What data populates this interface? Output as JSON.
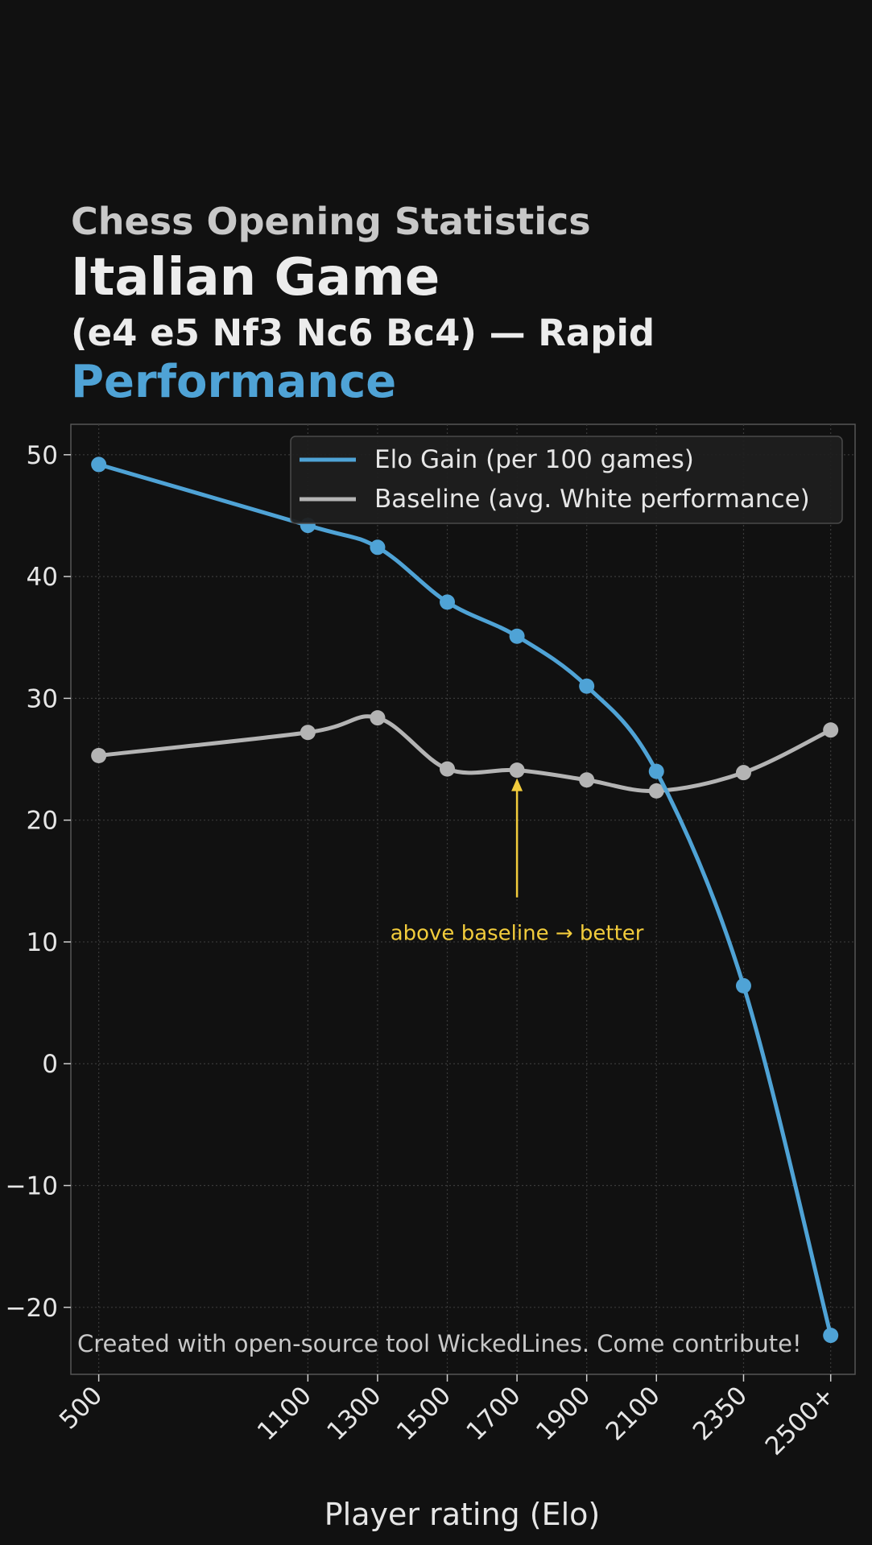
{
  "header": {
    "supertitle": "Chess Opening Statistics",
    "title": "Italian Game",
    "subtitle": "(e4 e5 Nf3 Nc6 Bc4) — Rapid",
    "highlight": "Performance"
  },
  "chart_data": {
    "type": "line",
    "categories": [
      "500",
      "1100",
      "1300",
      "1500",
      "1700",
      "1900",
      "2100",
      "2350",
      "2500+"
    ],
    "x": [
      500,
      1100,
      1300,
      1500,
      1700,
      1900,
      2100,
      2350,
      2600
    ],
    "series": [
      {
        "name": "Elo Gain (per 100 games)",
        "color": "#4fa3d6",
        "values": [
          49.2,
          44.2,
          42.4,
          37.9,
          35.1,
          31.0,
          24.0,
          6.4,
          -22.3
        ]
      },
      {
        "name": "Baseline (avg. White performance)",
        "color": "#b4b4b4",
        "values": [
          25.3,
          27.2,
          28.4,
          24.2,
          24.1,
          23.3,
          22.4,
          23.9,
          27.4
        ]
      }
    ],
    "yticks": [
      "50",
      "40",
      "30",
      "20",
      "10",
      "0",
      "−10",
      "−20"
    ],
    "ylim": [
      -25.5,
      52.5
    ],
    "xlabel": "Player rating (Elo)",
    "ylabel": "",
    "grid": true,
    "legend_position": "top-right",
    "annotation": {
      "text": "above baseline → better",
      "x": 1700,
      "y": 24.1,
      "color": "#f2cc3c"
    },
    "footer_note": "Created with open-source tool WickedLines. Come contribute!"
  }
}
